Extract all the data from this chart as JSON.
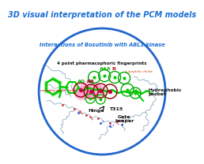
{
  "title": "3D visual interpretation of the PCM models",
  "title_color": "#1a6fd4",
  "title_fontsize": 7.0,
  "subtitle": "Interactions of Bosutinib with ABL1 kinase",
  "subtitle_color": "#1a6fd4",
  "subtitle_fontsize": 4.8,
  "circle_color": "#2266cc",
  "circle_linewidth": 2.0,
  "bg_color": "#ffffff",
  "label_fingerprints": "4 point pharmacophoric fingerprints",
  "label_lipo": "Lipophilic fields",
  "label_water": "unstable water fields",
  "label_hydrophobic": "Hydrophobic\npocket",
  "label_hinge": "Hinge",
  "label_t315": "T315",
  "label_gate": "Gate\nkeeper"
}
